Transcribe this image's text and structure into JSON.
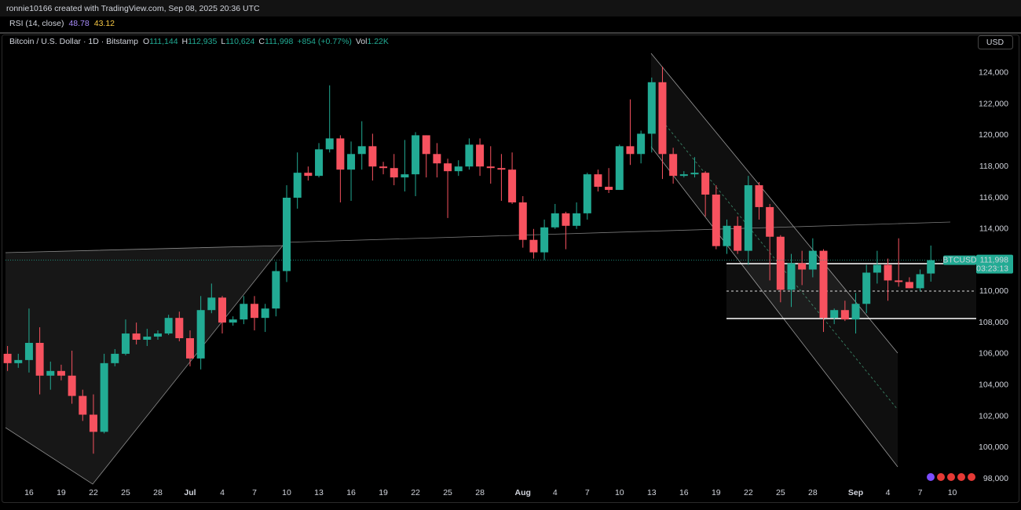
{
  "header": {
    "created": "ronnie10166 created with TradingView.com, Sep 08, 2025 20:36 UTC"
  },
  "indicator": {
    "name": "RSI (14, close)",
    "values": [
      "48.78",
      "43.12"
    ]
  },
  "legend": {
    "symbol": "Bitcoin / U.S. Dollar · 1D · Bitstamp",
    "items": [
      {
        "key": "O",
        "value": "111,144"
      },
      {
        "key": "H",
        "value": "112,935"
      },
      {
        "key": "L",
        "value": "110,624"
      },
      {
        "key": "C",
        "value": "111,998"
      }
    ],
    "change": "+854 (+0.77%)",
    "volume_key": "Vol",
    "volume": "1.22K"
  },
  "currency": "USD",
  "price_label": {
    "symbol": "BTCUSD",
    "countdown": "03:23:13"
  },
  "chart_data": {
    "type": "candlestick",
    "up_color": "#22ab94",
    "down_color": "#f7525f",
    "categories": [
      "2025-06-14",
      "2025-06-15",
      "2025-06-16",
      "2025-06-17",
      "2025-06-18",
      "2025-06-19",
      "2025-06-20",
      "2025-06-21",
      "2025-06-22",
      "2025-06-23",
      "2025-06-24",
      "2025-06-25",
      "2025-06-26",
      "2025-06-27",
      "2025-06-28",
      "2025-06-29",
      "2025-06-30",
      "2025-07-01",
      "2025-07-02",
      "2025-07-03",
      "2025-07-04",
      "2025-07-05",
      "2025-07-06",
      "2025-07-07",
      "2025-07-08",
      "2025-07-09",
      "2025-07-10",
      "2025-07-11",
      "2025-07-12",
      "2025-07-13",
      "2025-07-14",
      "2025-07-15",
      "2025-07-16",
      "2025-07-17",
      "2025-07-18",
      "2025-07-19",
      "2025-07-20",
      "2025-07-21",
      "2025-07-22",
      "2025-07-23",
      "2025-07-24",
      "2025-07-25",
      "2025-07-26",
      "2025-07-27",
      "2025-07-28",
      "2025-07-29",
      "2025-07-30",
      "2025-07-31",
      "2025-08-01",
      "2025-08-02",
      "2025-08-03",
      "2025-08-04",
      "2025-08-05",
      "2025-08-06",
      "2025-08-07",
      "2025-08-08",
      "2025-08-09",
      "2025-08-10",
      "2025-08-11",
      "2025-08-12",
      "2025-08-13",
      "2025-08-14",
      "2025-08-15",
      "2025-08-16",
      "2025-08-17",
      "2025-08-18",
      "2025-08-19",
      "2025-08-20",
      "2025-08-21",
      "2025-08-22",
      "2025-08-23",
      "2025-08-24",
      "2025-08-25",
      "2025-08-26",
      "2025-08-27",
      "2025-08-28",
      "2025-08-29",
      "2025-08-30",
      "2025-08-31",
      "2025-09-01",
      "2025-09-02",
      "2025-09-03",
      "2025-09-04",
      "2025-09-05",
      "2025-09-06",
      "2025-09-07",
      "2025-09-08"
    ],
    "open": [
      106000,
      105400,
      105600,
      106700,
      104600,
      104900,
      104600,
      103300,
      102100,
      101000,
      105400,
      106000,
      107300,
      106900,
      107100,
      107300,
      108300,
      107000,
      105700,
      108800,
      109600,
      108000,
      108200,
      109200,
      108300,
      108900,
      111300,
      116000,
      117600,
      117400,
      119100,
      119800,
      117800,
      118800,
      119300,
      118000,
      117900,
      117300,
      117500,
      120000,
      118800,
      118200,
      117700,
      118000,
      119400,
      118000,
      117900,
      117800,
      115700,
      113300,
      112500,
      114100,
      115000,
      114200,
      115000,
      117500,
      116700,
      116500,
      119300,
      118800,
      120100,
      123400,
      118800,
      117400,
      117500,
      117600,
      116200,
      112900,
      114200,
      112600,
      116800,
      115400,
      113500,
      110100,
      111800,
      111400,
      112600,
      108300,
      108800,
      108200,
      109200,
      111200,
      111700,
      110700,
      110600,
      110200,
      111144
    ],
    "high": [
      106500,
      106000,
      108900,
      107700,
      105500,
      105300,
      106200,
      103700,
      103400,
      106000,
      106300,
      108200,
      108000,
      107600,
      107500,
      108500,
      108700,
      107500,
      109700,
      110500,
      109700,
      108400,
      109700,
      109700,
      109200,
      111900,
      116800,
      118900,
      118000,
      119500,
      123200,
      120000,
      119600,
      120900,
      120100,
      118300,
      118800,
      119700,
      120200,
      120000,
      119500,
      118500,
      118400,
      119800,
      119800,
      119300,
      118800,
      118900,
      116100,
      114000,
      114600,
      115600,
      115100,
      115700,
      117600,
      117800,
      117900,
      119400,
      122300,
      120300,
      123700,
      124400,
      119200,
      117700,
      118600,
      117700,
      116800,
      114600,
      114800,
      117400,
      117000,
      115600,
      113600,
      112400,
      112600,
      113400,
      112700,
      108900,
      109400,
      109900,
      111700,
      112600,
      112100,
      113400,
      110900,
      111400,
      112935
    ],
    "low": [
      104900,
      105100,
      104800,
      103400,
      103700,
      104300,
      102800,
      101700,
      99600,
      100900,
      105200,
      105900,
      106600,
      106500,
      106900,
      107200,
      106800,
      105200,
      105000,
      108600,
      107300,
      107800,
      107900,
      107500,
      107400,
      108400,
      110600,
      115300,
      117100,
      117300,
      118900,
      115700,
      115800,
      117800,
      117100,
      117500,
      116800,
      116400,
      116100,
      117300,
      117300,
      114700,
      117400,
      117800,
      117400,
      116900,
      115800,
      115600,
      112800,
      112100,
      112000,
      114000,
      112700,
      114000,
      114600,
      116400,
      116300,
      116500,
      118100,
      118200,
      118900,
      117200,
      116900,
      117300,
      117300,
      114800,
      112700,
      112400,
      112400,
      111700,
      114600,
      110700,
      109300,
      109000,
      110400,
      110900,
      107400,
      107900,
      108100,
      107300,
      108600,
      110500,
      109400,
      110300,
      110200,
      110000,
      110624
    ],
    "close": [
      105400,
      105600,
      106700,
      104600,
      104900,
      104600,
      103300,
      102100,
      101000,
      105400,
      106000,
      107300,
      106900,
      107100,
      107300,
      108300,
      107000,
      105700,
      108800,
      109600,
      108000,
      108200,
      109200,
      108300,
      108900,
      111300,
      116000,
      117600,
      117400,
      119100,
      119800,
      117800,
      118800,
      119300,
      118000,
      117900,
      117300,
      117500,
      120000,
      118800,
      118200,
      117700,
      118000,
      119400,
      118000,
      117900,
      117800,
      115700,
      113300,
      112500,
      114100,
      115000,
      114200,
      115000,
      117500,
      116700,
      116500,
      119300,
      118800,
      120100,
      123400,
      118800,
      117400,
      117500,
      117600,
      116200,
      112900,
      114200,
      112600,
      116800,
      115400,
      113500,
      110100,
      111800,
      111400,
      112600,
      108300,
      108800,
      108200,
      109200,
      111200,
      111700,
      110700,
      110600,
      110200,
      111100,
      111998
    ],
    "ylim": [
      97500,
      125400
    ],
    "yticks": [
      {
        "value": 98000,
        "label": "98,000"
      },
      {
        "value": 100000,
        "label": "100,000"
      },
      {
        "value": 102000,
        "label": "102,000"
      },
      {
        "value": 104000,
        "label": "104,000"
      },
      {
        "value": 106000,
        "label": "106,000"
      },
      {
        "value": 108000,
        "label": "108,000"
      },
      {
        "value": 110000,
        "label": "110,000"
      },
      {
        "value": 112000,
        "label": "112,000"
      },
      {
        "value": 114000,
        "label": "114,000"
      },
      {
        "value": 116000,
        "label": "116,000"
      },
      {
        "value": 118000,
        "label": "118,000"
      },
      {
        "value": 120000,
        "label": "120,000"
      },
      {
        "value": 122000,
        "label": "122,000"
      },
      {
        "value": 124000,
        "label": "124,000"
      }
    ],
    "xticks": [
      {
        "value": "2025-06-16",
        "label": "16"
      },
      {
        "value": "2025-06-19",
        "label": "19"
      },
      {
        "value": "2025-06-22",
        "label": "22"
      },
      {
        "value": "2025-06-25",
        "label": "25"
      },
      {
        "value": "2025-06-28",
        "label": "28"
      },
      {
        "value": "2025-07-01",
        "label": "Jul"
      },
      {
        "value": "2025-07-04",
        "label": "4"
      },
      {
        "value": "2025-07-07",
        "label": "7"
      },
      {
        "value": "2025-07-10",
        "label": "10"
      },
      {
        "value": "2025-07-13",
        "label": "13"
      },
      {
        "value": "2025-07-16",
        "label": "16"
      },
      {
        "value": "2025-07-19",
        "label": "19"
      },
      {
        "value": "2025-07-22",
        "label": "22"
      },
      {
        "value": "2025-07-25",
        "label": "25"
      },
      {
        "value": "2025-07-28",
        "label": "28"
      },
      {
        "value": "2025-08-01",
        "label": "Aug"
      },
      {
        "value": "2025-08-04",
        "label": "4"
      },
      {
        "value": "2025-08-07",
        "label": "7"
      },
      {
        "value": "2025-08-10",
        "label": "10"
      },
      {
        "value": "2025-08-13",
        "label": "13"
      },
      {
        "value": "2025-08-16",
        "label": "16"
      },
      {
        "value": "2025-08-19",
        "label": "19"
      },
      {
        "value": "2025-08-22",
        "label": "22"
      },
      {
        "value": "2025-08-25",
        "label": "25"
      },
      {
        "value": "2025-08-28",
        "label": "28"
      },
      {
        "value": "2025-09-01",
        "label": "Sep"
      },
      {
        "value": "2025-09-04",
        "label": "4"
      },
      {
        "value": "2025-09-07",
        "label": "7"
      },
      {
        "value": "2025-09-10",
        "label": "10"
      }
    ],
    "grid": false
  }
}
